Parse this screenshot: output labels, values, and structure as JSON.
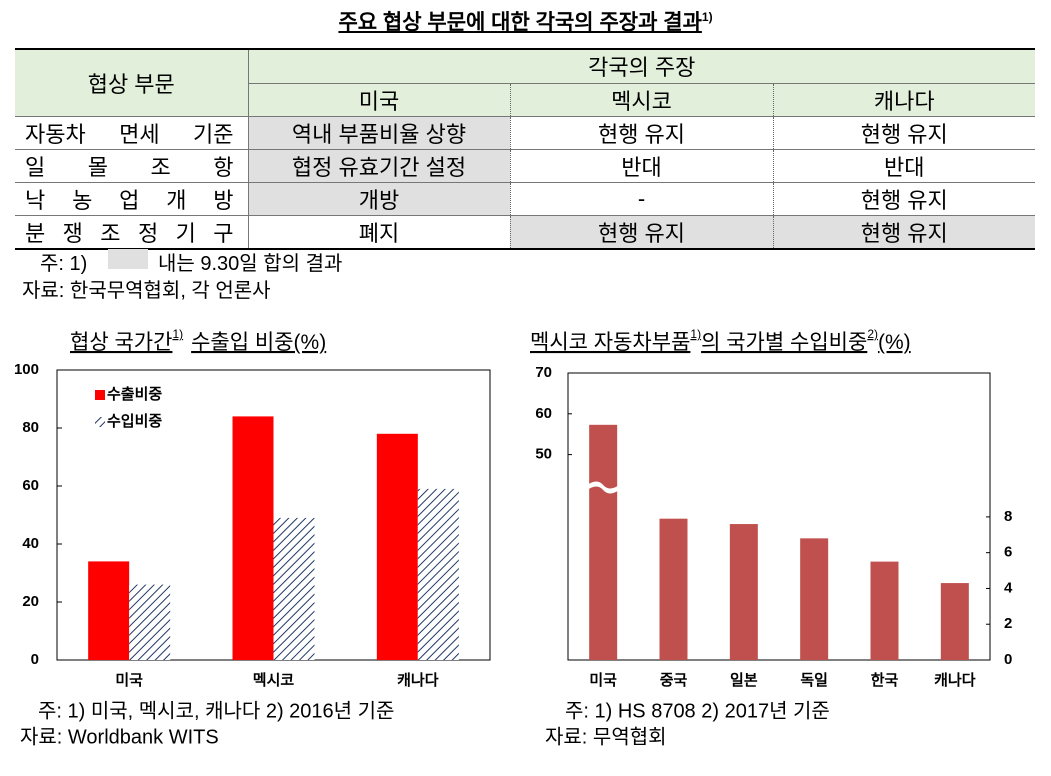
{
  "title": {
    "text": "주요 협상 부문에 대한 각국의 주장과 결과",
    "sup": "1)"
  },
  "table": {
    "header": {
      "sector": "협상 부문",
      "claims": "각국의 주장",
      "countries": [
        "미국",
        "멕시코",
        "캐나다"
      ]
    },
    "rows": [
      [
        "자동차 면세 기준",
        "역내 부품비율 상향",
        "현행 유지",
        "현행 유지"
      ],
      [
        "일 몰 조 항",
        "협정 유효기간 설정",
        "반대",
        "반대"
      ],
      [
        "낙 농 업 개 방",
        "개방",
        "-",
        "현행 유지"
      ],
      [
        "분 쟁 조 정 기 구",
        "폐지",
        "현행 유지",
        "현행 유지"
      ]
    ]
  },
  "notes": {
    "note": "주: 1)",
    "note_text": "내는 9.30일 합의 결과",
    "source": "자료: 한국무역협회, 각 언론사"
  },
  "chart_data": [
    {
      "type": "bar",
      "title": [
        {
          "text": "협상 국가간"
        },
        {
          "sup": "1)"
        },
        {
          "text": "수출입 비중(%)"
        }
      ],
      "categories": [
        "미국",
        "멕시코",
        "캐나다"
      ],
      "series": [
        {
          "name": "수출비중",
          "color": "#ff0000",
          "values": [
            34,
            84,
            78
          ]
        },
        {
          "name": "수입비중",
          "color": "#1f3864",
          "pattern": "hatch",
          "values": [
            26,
            49,
            59
          ]
        }
      ],
      "ylim": [
        0,
        100
      ],
      "yticks": [
        0,
        20,
        40,
        60,
        80,
        100
      ],
      "legend": "upper-left",
      "note": "주: 1) 미국, 멕시코, 캐나다 2) 2016년 기준",
      "source": "자료: Worldbank WITS"
    },
    {
      "type": "bar",
      "broken_axis": true,
      "title": [
        {
          "text": "멕시코 자동차부품"
        },
        {
          "sup": "1)"
        },
        {
          "text": "의 국가별 수입비중"
        },
        {
          "sup": "2)"
        },
        {
          "text": "(%)"
        }
      ],
      "categories": [
        "미국",
        "중국",
        "일본",
        "독일",
        "한국",
        "캐나다"
      ],
      "values": [
        57.3,
        7.9,
        7.6,
        6.8,
        5.5,
        4.3
      ],
      "value_axes": [
        "y",
        "y2",
        "y2",
        "y2",
        "y2",
        "y2"
      ],
      "color": "#c0504d",
      "ylim": [
        45,
        70
      ],
      "yticks": [
        50,
        60,
        70
      ],
      "y2lim": [
        0,
        9
      ],
      "y2ticks": [
        0,
        2,
        4,
        6,
        8
      ],
      "note": "주: 1) HS 8708   2) 2017년 기준",
      "source": "자료: 무역협회"
    }
  ]
}
